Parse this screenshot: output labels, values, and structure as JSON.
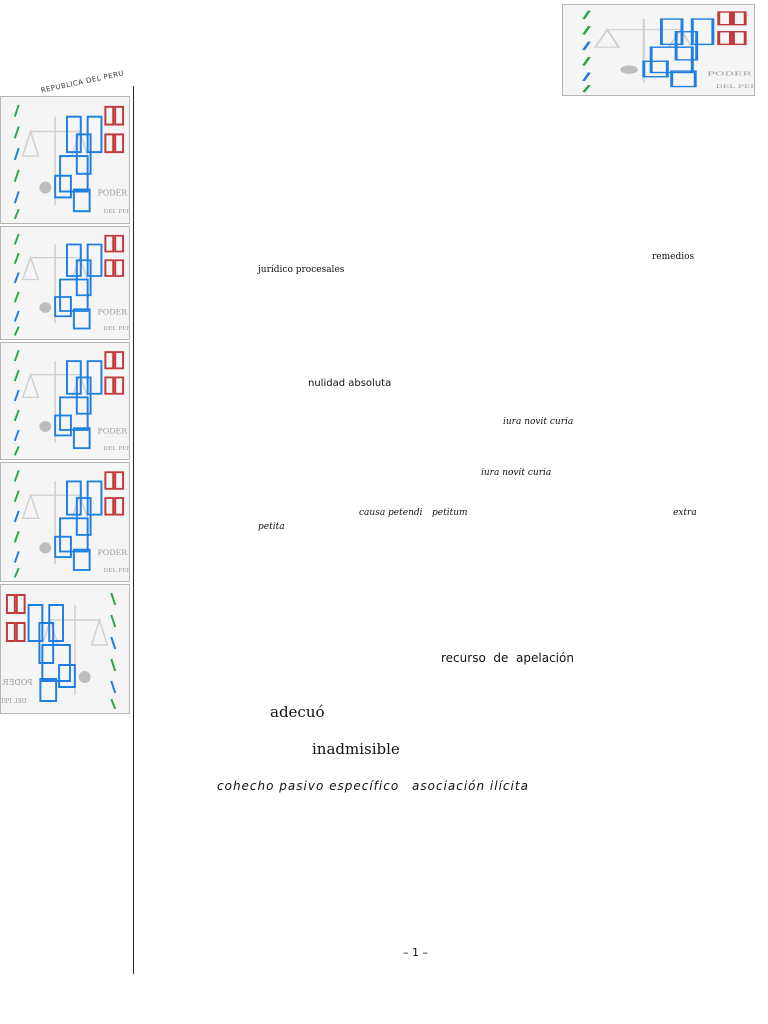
{
  "header": {
    "seal_caption": "REPUBLICA DEL PERU"
  },
  "logos": {
    "top_right": {
      "icon": "poder-judicial-logo-icon"
    },
    "sidebar": [
      {
        "icon": "poder-judicial-logo-icon"
      },
      {
        "icon": "poder-judicial-logo-icon"
      },
      {
        "icon": "poder-judicial-logo-icon"
      },
      {
        "icon": "poder-judicial-logo-icon"
      },
      {
        "icon": "poder-judicial-logo-icon",
        "variant": "mirrored"
      }
    ],
    "colors": {
      "blue": "#1e7fe0",
      "red": "#c0393b",
      "green": "#2aa84a",
      "grey": "#9a9a9a"
    }
  },
  "body": {
    "remedios": "remedios",
    "juridico_procesales": "jurídico procesales",
    "nulidad_absoluta": "nulidad absoluta",
    "iura_novit_curia_1": "iura novit curia",
    "iura_novit_curia_2": "iura novit curia",
    "causa_petendi": "causa petendi",
    "petitum": "petitum",
    "extra": "extra",
    "petita": "petita",
    "recurso_de_apelacion": "recurso  de  apelación",
    "adecuo": "adecuó",
    "inadmisible": "inadmisible",
    "cohecho_pasivo": "cohecho pasivo específico",
    "asociacion_ilicita": "asociación ilícita"
  },
  "footer": {
    "page_number": "– 1 –"
  }
}
